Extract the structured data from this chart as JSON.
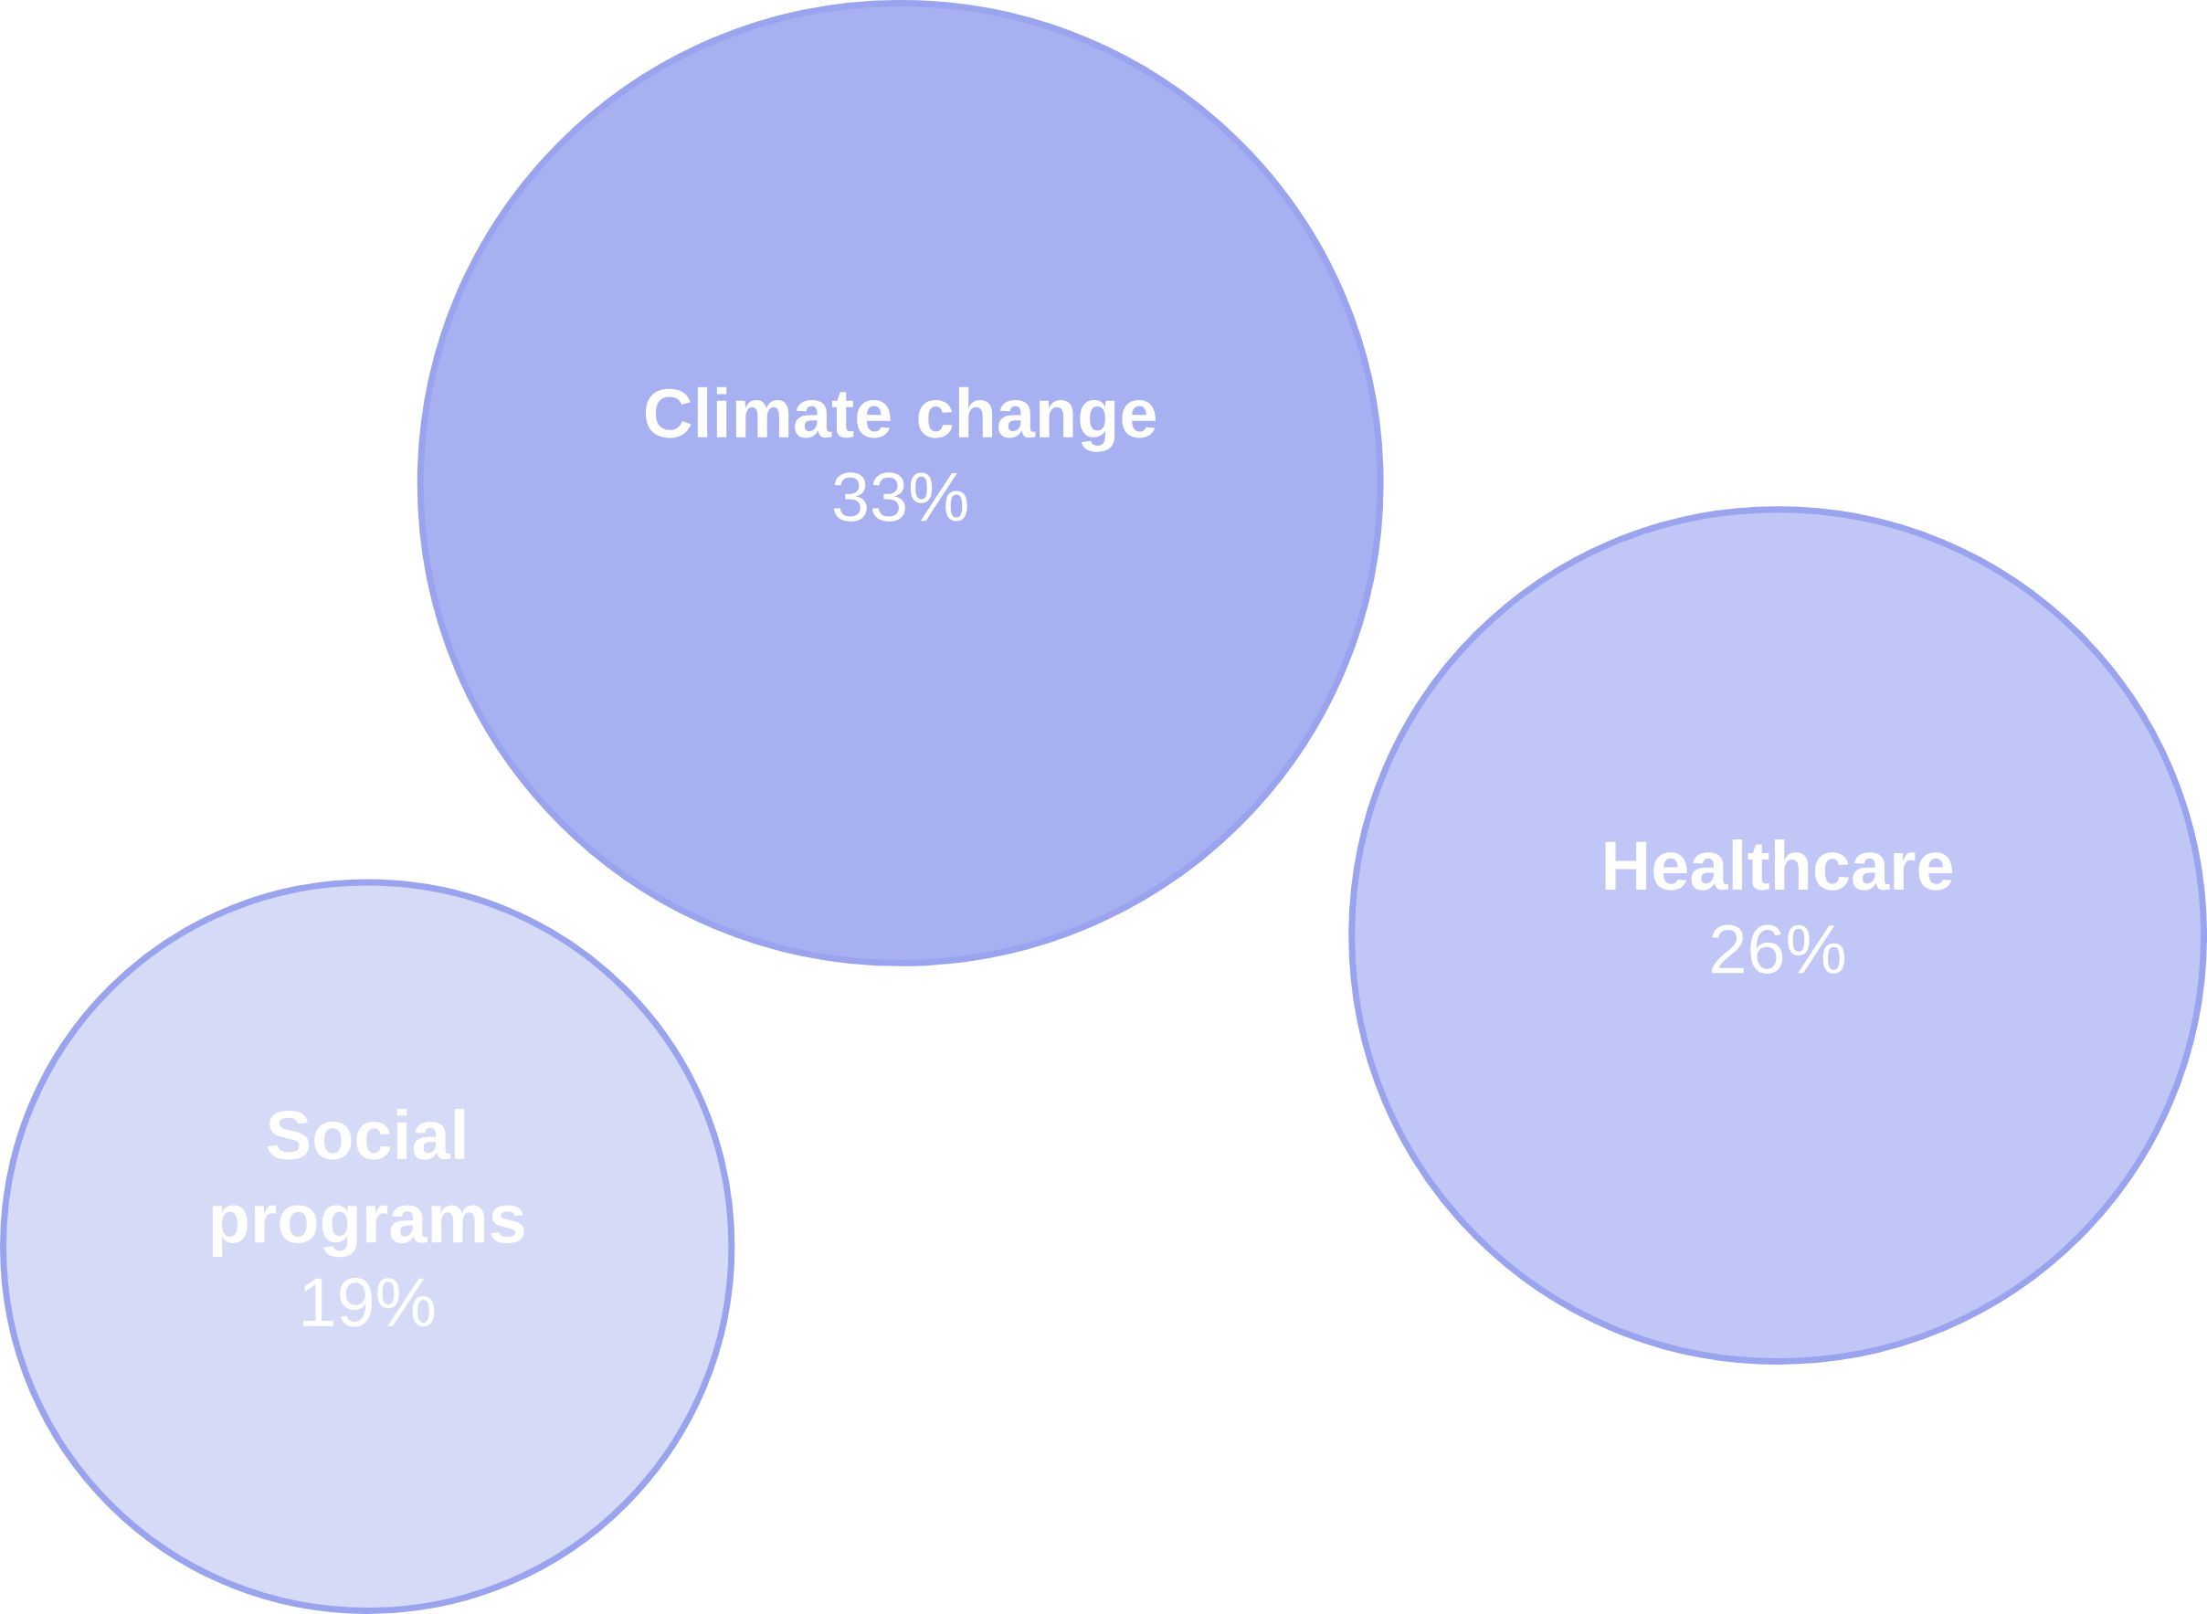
{
  "chart_data": {
    "type": "other",
    "categories": [
      "Climate change",
      "Healthcare",
      "Social programs"
    ],
    "values": [
      33,
      26,
      19
    ],
    "value_labels": [
      "33%",
      "26%",
      "19%"
    ],
    "colors": [
      "#a7b0f1",
      "#c0c7f6",
      "#d5daf7"
    ]
  }
}
